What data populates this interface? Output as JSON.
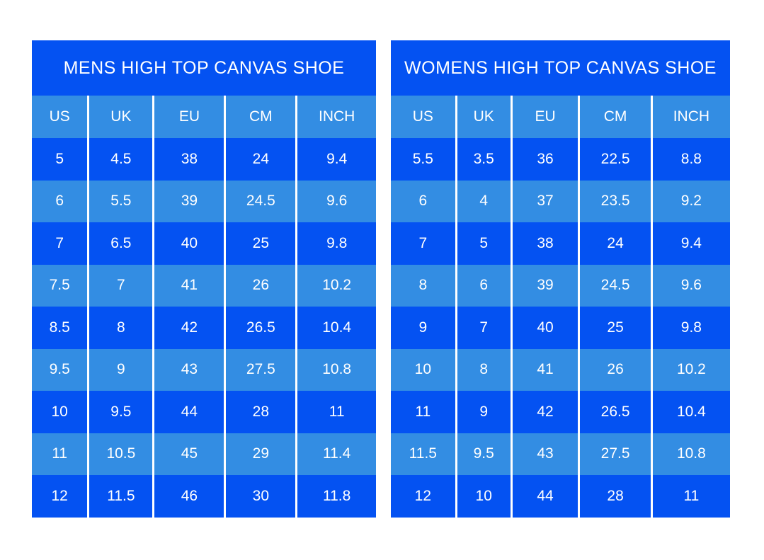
{
  "page": {
    "background": "#ffffff"
  },
  "colors": {
    "row_dark_blue": "#0452f2",
    "row_light_blue": "#338de3",
    "text": "#ffffff"
  },
  "chart_data": [
    {
      "type": "table",
      "title": "MENS HIGH TOP CANVAS SHOE",
      "columns": [
        "US",
        "UK",
        "EU",
        "CM",
        "INCH"
      ],
      "rows": [
        [
          "5",
          "4.5",
          "38",
          "24",
          "9.4"
        ],
        [
          "6",
          "5.5",
          "39",
          "24.5",
          "9.6"
        ],
        [
          "7",
          "6.5",
          "40",
          "25",
          "9.8"
        ],
        [
          "7.5",
          "7",
          "41",
          "26",
          "10.2"
        ],
        [
          "8.5",
          "8",
          "42",
          "26.5",
          "10.4"
        ],
        [
          "9.5",
          "9",
          "43",
          "27.5",
          "10.8"
        ],
        [
          "10",
          "9.5",
          "44",
          "28",
          "11"
        ],
        [
          "11",
          "10.5",
          "45",
          "29",
          "11.4"
        ],
        [
          "12",
          "11.5",
          "46",
          "30",
          "11.8"
        ]
      ],
      "row_striping": "alternating dark/light starting dark",
      "legend_position": "none",
      "grid": "white vertical column dividers only"
    },
    {
      "type": "table",
      "title": "WOMENS HIGH TOP CANVAS SHOE",
      "columns": [
        "US",
        "UK",
        "EU",
        "CM",
        "INCH"
      ],
      "rows": [
        [
          "5.5",
          "3.5",
          "36",
          "22.5",
          "8.8"
        ],
        [
          "6",
          "4",
          "37",
          "23.5",
          "9.2"
        ],
        [
          "7",
          "5",
          "38",
          "24",
          "9.4"
        ],
        [
          "8",
          "6",
          "39",
          "24.5",
          "9.6"
        ],
        [
          "9",
          "7",
          "40",
          "25",
          "9.8"
        ],
        [
          "10",
          "8",
          "41",
          "26",
          "10.2"
        ],
        [
          "11",
          "9",
          "42",
          "26.5",
          "10.4"
        ],
        [
          "11.5",
          "9.5",
          "43",
          "27.5",
          "10.8"
        ],
        [
          "12",
          "10",
          "44",
          "28",
          "11"
        ]
      ],
      "row_striping": "alternating dark/light starting dark",
      "legend_position": "none",
      "grid": "white vertical column dividers only"
    }
  ]
}
